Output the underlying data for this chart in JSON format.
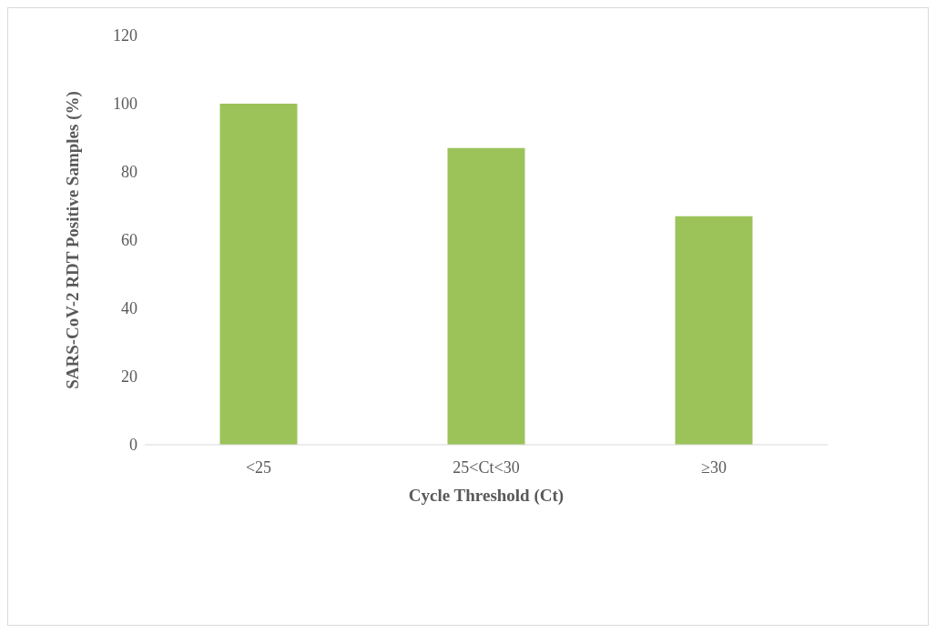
{
  "chart_data": {
    "type": "bar",
    "xlabel": "Cycle Threshold (Ct)",
    "ylabel": "SARS-CoV-2 RDT Positive Samples (%)",
    "categories": [
      "<25",
      "25<Ct<30",
      "≥30"
    ],
    "values": [
      100,
      87,
      67
    ],
    "color": "#9bc35a",
    "ylim": [
      0,
      120
    ],
    "yticks": [
      0,
      20,
      40,
      60,
      80,
      100,
      120
    ]
  }
}
